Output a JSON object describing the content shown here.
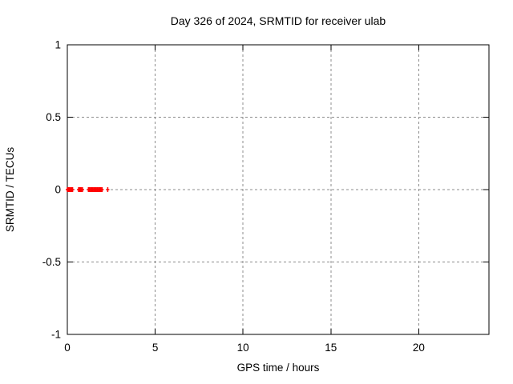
{
  "page": {
    "background": "#ffffff"
  },
  "chart_data": {
    "type": "scatter",
    "title": "Day 326 of 2024, SRMTID for receiver ulab",
    "xlabel": "GPS time / hours",
    "ylabel": "SRMTID / TECUs",
    "xlim": [
      0,
      24
    ],
    "ylim": [
      -1,
      1
    ],
    "xticks": [
      0,
      5,
      10,
      15,
      20
    ],
    "xtick_labels": [
      "0",
      "5",
      "10",
      "15",
      "20"
    ],
    "yticks": [
      -1,
      -0.5,
      0,
      0.5,
      1
    ],
    "ytick_labels": [
      "-1",
      "-0.5",
      "0",
      "0.5",
      "1"
    ],
    "grid": true,
    "grid_style": "dashed",
    "legend": "none",
    "marker": "plus",
    "colors": {
      "marker": "#ff0000",
      "grid": "#8c8c8c",
      "axis": "#000000",
      "text": "#000000",
      "background": "#ffffff"
    },
    "series": [
      {
        "points": [
          [
            0.0,
            0
          ],
          [
            0.06,
            0
          ],
          [
            0.12,
            0
          ],
          [
            0.18,
            0
          ],
          [
            0.24,
            0
          ],
          [
            0.3,
            0
          ],
          [
            0.64,
            0
          ],
          [
            0.7,
            0
          ],
          [
            0.76,
            0
          ],
          [
            0.82,
            0
          ],
          [
            0.86,
            0
          ],
          [
            1.2,
            0
          ],
          [
            1.26,
            0
          ],
          [
            1.32,
            0
          ],
          [
            1.38,
            0
          ],
          [
            1.44,
            0
          ],
          [
            1.5,
            0
          ],
          [
            1.56,
            0
          ],
          [
            1.62,
            0
          ],
          [
            1.68,
            0
          ],
          [
            1.74,
            0
          ],
          [
            1.8,
            0
          ],
          [
            1.86,
            0
          ],
          [
            1.92,
            0
          ],
          [
            1.98,
            0
          ],
          [
            2.3,
            0
          ]
        ]
      }
    ]
  }
}
